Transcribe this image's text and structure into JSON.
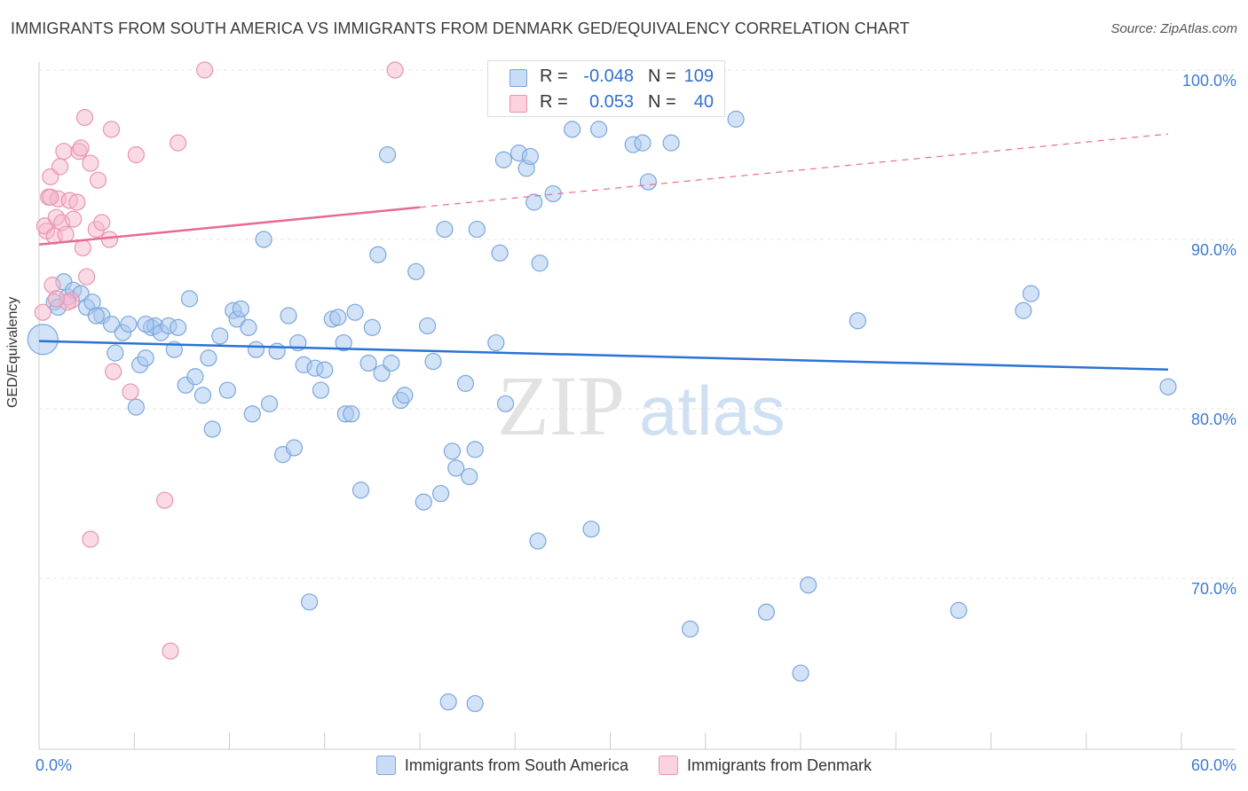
{
  "header": {
    "title": "IMMIGRANTS FROM SOUTH AMERICA VS IMMIGRANTS FROM DENMARK GED/EQUIVALENCY CORRELATION CHART",
    "source": "Source: ZipAtlas.com"
  },
  "watermark": {
    "zip": "ZIP",
    "atlas": "atlas"
  },
  "stats": {
    "rows": [
      {
        "r_label": "R =",
        "r_value": "-0.048",
        "n_label": "N =",
        "n_value": "109",
        "color": "#a8c8f0"
      },
      {
        "r_label": "R =",
        "r_value": "0.053",
        "n_label": "N =",
        "n_value": "40",
        "color": "#f5b8cb"
      }
    ]
  },
  "legend": {
    "items": [
      {
        "label": "Immigrants from South America",
        "color": "#a8c8f0"
      },
      {
        "label": "Immigrants from Denmark",
        "color": "#f5b8cb"
      }
    ]
  },
  "chart_data": {
    "type": "scatter",
    "ylabel": "GED/Equivalency",
    "xlim": [
      0,
      60
    ],
    "ylim": [
      61,
      100
    ],
    "x_tick_labels": [
      "0.0%",
      "60.0%"
    ],
    "y_ticks": [
      70,
      80,
      90,
      100
    ],
    "y_tick_labels": [
      "70.0%",
      "80.0%",
      "90.0%",
      "100.0%"
    ],
    "grid": true,
    "colors": {
      "blue_fill": "#a8c8f0",
      "blue_stroke": "#7aa6dd",
      "blue_line": "#2b72d6",
      "pink_fill": "#f5b8cb",
      "pink_stroke": "#e993b0",
      "pink_line": "#e76a96"
    },
    "series": [
      {
        "name": "Immigrants from South America",
        "trend": {
          "x": [
            0,
            60
          ],
          "y": [
            84.0,
            82.3
          ],
          "dashed_from": null
        },
        "points": [
          [
            0.2,
            84.1
          ],
          [
            0.8,
            86.3
          ],
          [
            1.0,
            86.0
          ],
          [
            1.3,
            87.5
          ],
          [
            1.5,
            86.6
          ],
          [
            1.8,
            87.0
          ],
          [
            2.2,
            86.8
          ],
          [
            2.5,
            86.0
          ],
          [
            2.8,
            86.3
          ],
          [
            3.3,
            85.5
          ],
          [
            3.8,
            85.0
          ],
          [
            4.0,
            83.3
          ],
          [
            4.4,
            84.5
          ],
          [
            4.7,
            85.0
          ],
          [
            5.1,
            80.1
          ],
          [
            5.3,
            82.6
          ],
          [
            5.6,
            83.0
          ],
          [
            5.9,
            84.8
          ],
          [
            6.1,
            84.9
          ],
          [
            6.4,
            84.5
          ],
          [
            6.8,
            84.9
          ],
          [
            7.1,
            83.5
          ],
          [
            7.3,
            84.8
          ],
          [
            7.7,
            81.4
          ],
          [
            7.9,
            86.5
          ],
          [
            8.2,
            81.9
          ],
          [
            8.6,
            80.8
          ],
          [
            8.9,
            83.0
          ],
          [
            9.1,
            78.8
          ],
          [
            9.5,
            84.3
          ],
          [
            9.9,
            81.1
          ],
          [
            10.2,
            85.8
          ],
          [
            10.4,
            85.3
          ],
          [
            10.6,
            85.9
          ],
          [
            11.0,
            84.8
          ],
          [
            11.2,
            79.7
          ],
          [
            11.4,
            83.5
          ],
          [
            11.8,
            90.0
          ],
          [
            12.1,
            80.3
          ],
          [
            12.5,
            83.4
          ],
          [
            12.8,
            77.3
          ],
          [
            13.1,
            85.5
          ],
          [
            13.4,
            77.7
          ],
          [
            13.6,
            83.9
          ],
          [
            13.9,
            82.6
          ],
          [
            14.2,
            68.6
          ],
          [
            14.5,
            82.4
          ],
          [
            14.8,
            81.1
          ],
          [
            15.0,
            82.3
          ],
          [
            15.4,
            85.3
          ],
          [
            15.7,
            85.4
          ],
          [
            16.1,
            79.7
          ],
          [
            16.4,
            79.7
          ],
          [
            16.6,
            85.7
          ],
          [
            16.9,
            75.2
          ],
          [
            17.3,
            82.7
          ],
          [
            17.5,
            84.8
          ],
          [
            17.8,
            89.1
          ],
          [
            18.0,
            82.1
          ],
          [
            18.3,
            95.0
          ],
          [
            18.5,
            82.7
          ],
          [
            19.0,
            80.5
          ],
          [
            19.2,
            80.8
          ],
          [
            19.8,
            88.1
          ],
          [
            20.2,
            74.5
          ],
          [
            20.4,
            84.9
          ],
          [
            20.7,
            82.8
          ],
          [
            21.1,
            75.0
          ],
          [
            21.5,
            62.7
          ],
          [
            21.7,
            77.5
          ],
          [
            21.9,
            76.5
          ],
          [
            22.4,
            81.5
          ],
          [
            22.6,
            76.0
          ],
          [
            22.9,
            77.6
          ],
          [
            22.9,
            62.6
          ],
          [
            24.0,
            83.9
          ],
          [
            24.2,
            89.2
          ],
          [
            24.5,
            80.3
          ],
          [
            24.4,
            94.7
          ],
          [
            25.2,
            95.1
          ],
          [
            25.6,
            94.2
          ],
          [
            25.8,
            94.9
          ],
          [
            26.2,
            72.2
          ],
          [
            26.3,
            88.6
          ],
          [
            26.0,
            92.2
          ],
          [
            27.0,
            92.7
          ],
          [
            28.0,
            96.5
          ],
          [
            29.0,
            72.9
          ],
          [
            29.4,
            96.5
          ],
          [
            31.2,
            95.6
          ],
          [
            31.7,
            95.7
          ],
          [
            32.0,
            93.4
          ],
          [
            33.2,
            95.7
          ],
          [
            34.2,
            67.0
          ],
          [
            35.6,
            100.0
          ],
          [
            36.6,
            97.1
          ],
          [
            38.2,
            68.0
          ],
          [
            40.0,
            64.4
          ],
          [
            40.4,
            69.6
          ],
          [
            43.0,
            85.2
          ],
          [
            48.3,
            68.1
          ],
          [
            51.7,
            85.8
          ],
          [
            52.1,
            86.8
          ],
          [
            59.3,
            81.3
          ],
          [
            21.3,
            90.6
          ],
          [
            23.0,
            90.6
          ],
          [
            5.6,
            85.0
          ],
          [
            3.0,
            85.5
          ],
          [
            16.0,
            83.9
          ]
        ]
      },
      {
        "name": "Immigrants from Denmark",
        "trend": {
          "x": [
            0,
            60
          ],
          "y": [
            89.7,
            96.3
          ],
          "dashed_from": 20
        },
        "points": [
          [
            0.2,
            85.7
          ],
          [
            0.4,
            90.5
          ],
          [
            0.3,
            90.8
          ],
          [
            0.5,
            92.5
          ],
          [
            0.6,
            93.7
          ],
          [
            0.7,
            87.3
          ],
          [
            0.8,
            90.2
          ],
          [
            0.9,
            91.3
          ],
          [
            1.0,
            92.4
          ],
          [
            1.1,
            94.3
          ],
          [
            1.2,
            91.0
          ],
          [
            1.3,
            95.2
          ],
          [
            1.4,
            90.3
          ],
          [
            1.6,
            92.3
          ],
          [
            1.7,
            86.4
          ],
          [
            1.8,
            91.2
          ],
          [
            2.1,
            95.2
          ],
          [
            2.2,
            95.4
          ],
          [
            2.3,
            89.5
          ],
          [
            2.4,
            97.2
          ],
          [
            2.5,
            87.8
          ],
          [
            2.7,
            94.5
          ],
          [
            3.0,
            90.6
          ],
          [
            3.1,
            93.5
          ],
          [
            3.3,
            91.0
          ],
          [
            3.7,
            90.0
          ],
          [
            3.8,
            96.5
          ],
          [
            3.9,
            82.2
          ],
          [
            4.8,
            81.0
          ],
          [
            5.1,
            95.0
          ],
          [
            6.6,
            74.6
          ],
          [
            6.9,
            65.7
          ],
          [
            7.3,
            95.7
          ],
          [
            8.7,
            100.0
          ],
          [
            18.7,
            100.0
          ],
          [
            2.7,
            72.3
          ],
          [
            0.6,
            92.5
          ],
          [
            1.5,
            86.3
          ],
          [
            0.9,
            86.5
          ],
          [
            2.0,
            92.2
          ]
        ]
      }
    ]
  }
}
